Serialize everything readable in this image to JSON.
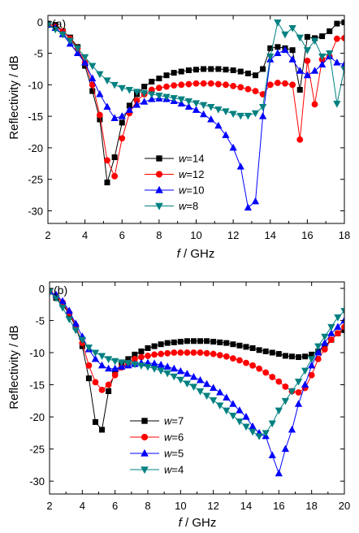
{
  "chart_data": [
    {
      "panel_label": "(a)",
      "type": "line",
      "xlabel": "f / GHz",
      "ylabel": "Reflectivity / dB",
      "xlim": [
        2,
        18
      ],
      "ylim": [
        -32,
        1
      ],
      "xticks": [
        2,
        4,
        6,
        8,
        10,
        12,
        14,
        16,
        18
      ],
      "yticks": [
        0,
        -5,
        -10,
        -15,
        -20,
        -25,
        -30
      ],
      "grid": false,
      "legend_position": "lower-center",
      "series": [
        {
          "name": "w=14",
          "legend_name": "w",
          "legend_value": "=14",
          "color": "#000000",
          "marker": "square",
          "x": [
            2.0,
            2.4,
            2.8,
            3.2,
            3.6,
            4.0,
            4.4,
            4.8,
            5.2,
            5.6,
            6.0,
            6.4,
            6.8,
            7.2,
            7.6,
            8.0,
            8.4,
            8.8,
            9.2,
            9.6,
            10.0,
            10.4,
            10.8,
            11.2,
            11.6,
            12.0,
            12.4,
            12.8,
            13.2,
            13.6,
            14.0,
            14.4,
            14.8,
            15.2,
            15.6,
            16.0,
            16.4,
            16.8,
            17.2,
            17.6,
            18.0
          ],
          "y": [
            -0.3,
            -0.5,
            -1.5,
            -2.5,
            -4.0,
            -7.0,
            -11.0,
            -15.5,
            -25.5,
            -21.5,
            -16.0,
            -13.3,
            -11.5,
            -10.3,
            -9.5,
            -9.0,
            -8.5,
            -8.1,
            -7.9,
            -7.7,
            -7.6,
            -7.5,
            -7.5,
            -7.5,
            -7.6,
            -7.7,
            -7.9,
            -8.2,
            -8.5,
            -7.5,
            -4.2,
            -4.0,
            -4.2,
            -4.5,
            -10.8,
            -2.4,
            -2.6,
            -2.3,
            -1.5,
            -0.3,
            -0.1
          ]
        },
        {
          "name": "w=12",
          "legend_name": "w",
          "legend_value": "=12",
          "color": "#ff0000",
          "marker": "circle",
          "x": [
            2.0,
            2.4,
            2.8,
            3.2,
            3.6,
            4.0,
            4.4,
            4.8,
            5.2,
            5.6,
            6.0,
            6.4,
            6.8,
            7.2,
            7.6,
            8.0,
            8.4,
            8.8,
            9.2,
            9.6,
            10.0,
            10.4,
            10.8,
            11.2,
            11.6,
            12.0,
            12.4,
            12.8,
            13.2,
            13.6,
            14.0,
            14.4,
            14.8,
            15.2,
            15.6,
            16.0,
            16.4,
            16.8,
            17.2,
            17.6,
            18.0
          ],
          "y": [
            -0.5,
            -0.8,
            -1.5,
            -2.7,
            -4.2,
            -6.5,
            -10.0,
            -14.8,
            -22.0,
            -24.5,
            -18.5,
            -14.5,
            -12.5,
            -11.5,
            -10.8,
            -10.5,
            -10.3,
            -10.1,
            -10.0,
            -9.9,
            -9.8,
            -9.8,
            -9.8,
            -9.9,
            -10.0,
            -10.2,
            -10.4,
            -10.7,
            -11.0,
            -11.5,
            -10.0,
            -9.7,
            -9.8,
            -10.0,
            -18.7,
            -6.2,
            -13.1,
            -6.0,
            -5.5,
            -2.7,
            -2.6
          ]
        },
        {
          "name": "w=10",
          "legend_name": "w",
          "legend_value": "=10",
          "color": "#0000ff",
          "marker": "triangle-up",
          "x": [
            2.0,
            2.4,
            2.8,
            3.2,
            3.6,
            4.0,
            4.4,
            4.8,
            5.2,
            5.6,
            6.0,
            6.4,
            6.8,
            7.2,
            7.6,
            8.0,
            8.4,
            8.8,
            9.2,
            9.6,
            10.0,
            10.4,
            10.8,
            11.2,
            11.6,
            12.0,
            12.4,
            12.8,
            13.2,
            13.6,
            14.0,
            14.4,
            14.8,
            15.2,
            15.6,
            16.0,
            16.4,
            16.8,
            17.2,
            17.6,
            18.0
          ],
          "y": [
            -0.5,
            -1.0,
            -2.0,
            -3.5,
            -5.0,
            -6.5,
            -9.0,
            -11.5,
            -13.5,
            -15.3,
            -15.0,
            -14.0,
            -13.2,
            -12.7,
            -12.3,
            -12.2,
            -12.3,
            -12.6,
            -13.0,
            -13.5,
            -14.0,
            -14.7,
            -15.5,
            -16.5,
            -18.0,
            -20.0,
            -23.0,
            -29.5,
            -28.5,
            -15.0,
            -6.0,
            -5.0,
            -4.5,
            -6.0,
            -7.8,
            -8.5,
            -7.8,
            -6.8,
            -5.5,
            -6.5,
            -6.8
          ]
        },
        {
          "name": "w=8",
          "legend_name": "w",
          "legend_value": "=8",
          "color": "#008080",
          "marker": "triangle-down",
          "x": [
            2.0,
            2.4,
            2.8,
            3.2,
            3.6,
            4.0,
            4.4,
            4.8,
            5.2,
            5.6,
            6.0,
            6.4,
            6.8,
            7.2,
            7.6,
            8.0,
            8.4,
            8.8,
            9.2,
            9.6,
            10.0,
            10.4,
            10.8,
            11.2,
            11.6,
            12.0,
            12.4,
            12.8,
            13.2,
            13.6,
            14.0,
            14.4,
            14.8,
            15.2,
            15.6,
            16.0,
            16.4,
            16.8,
            17.2,
            17.6,
            18.0
          ],
          "y": [
            -0.5,
            -1.2,
            -2.0,
            -3.0,
            -4.2,
            -5.6,
            -7.0,
            -8.3,
            -9.3,
            -10.0,
            -10.5,
            -10.8,
            -11.1,
            -11.3,
            -11.5,
            -11.7,
            -11.9,
            -12.1,
            -12.3,
            -12.6,
            -12.9,
            -13.2,
            -13.5,
            -13.9,
            -14.2,
            -14.6,
            -14.9,
            -14.9,
            -14.5,
            -13.5,
            -5.5,
            -0.1,
            -2.0,
            -1.0,
            -2.5,
            -4.5,
            -3.0,
            -5.5,
            -5.0,
            -13.0,
            -7.5
          ]
        }
      ]
    },
    {
      "panel_label": "(b)",
      "type": "line",
      "xlabel": "f / GHz",
      "ylabel": "Reflectivity / dB",
      "xlim": [
        2,
        20
      ],
      "ylim": [
        -32,
        1
      ],
      "xticks": [
        2,
        4,
        6,
        8,
        10,
        12,
        14,
        16,
        18,
        20
      ],
      "yticks": [
        0,
        -5,
        -10,
        -15,
        -20,
        -25,
        -30
      ],
      "grid": false,
      "legend_position": "lower-left",
      "series": [
        {
          "name": "w=7",
          "legend_name": "w",
          "legend_value": "=7",
          "color": "#000000",
          "marker": "square",
          "x": [
            2.0,
            2.4,
            2.8,
            3.2,
            3.6,
            4.0,
            4.4,
            4.8,
            5.2,
            5.6,
            6.0,
            6.4,
            6.8,
            7.2,
            7.6,
            8.0,
            8.4,
            8.8,
            9.2,
            9.6,
            10.0,
            10.4,
            10.8,
            11.2,
            11.6,
            12.0,
            12.4,
            12.8,
            13.2,
            13.6,
            14.0,
            14.4,
            14.8,
            15.2,
            15.6,
            16.0,
            16.4,
            16.8,
            17.2,
            17.6,
            18.0,
            18.4,
            18.8,
            19.2,
            19.6,
            20.0
          ],
          "y": [
            -0.5,
            -1.5,
            -2.5,
            -4.0,
            -6.0,
            -9.0,
            -14.0,
            -20.8,
            -22.0,
            -16.0,
            -13.0,
            -11.8,
            -11.0,
            -10.3,
            -9.8,
            -9.3,
            -9.0,
            -8.7,
            -8.5,
            -8.4,
            -8.3,
            -8.2,
            -8.2,
            -8.2,
            -8.2,
            -8.3,
            -8.4,
            -8.5,
            -8.7,
            -8.9,
            -9.1,
            -9.3,
            -9.6,
            -9.8,
            -10.0,
            -10.2,
            -10.5,
            -10.6,
            -10.7,
            -10.6,
            -10.3,
            -9.8,
            -9.0,
            -8.0,
            -7.0,
            -6.5
          ]
        },
        {
          "name": "w=6",
          "legend_name": "w",
          "legend_value": "=6",
          "color": "#ff0000",
          "marker": "circle",
          "x": [
            2.0,
            2.4,
            2.8,
            3.2,
            3.6,
            4.0,
            4.4,
            4.8,
            5.2,
            5.6,
            6.0,
            6.4,
            6.8,
            7.2,
            7.6,
            8.0,
            8.4,
            8.8,
            9.2,
            9.6,
            10.0,
            10.4,
            10.8,
            11.2,
            11.6,
            12.0,
            12.4,
            12.8,
            13.2,
            13.6,
            14.0,
            14.4,
            14.8,
            15.2,
            15.6,
            16.0,
            16.4,
            16.8,
            17.2,
            17.6,
            18.0,
            18.4,
            18.8,
            19.2,
            19.6,
            20.0
          ],
          "y": [
            -0.5,
            -1.2,
            -2.2,
            -3.8,
            -5.8,
            -8.5,
            -12.0,
            -14.6,
            -15.8,
            -15.0,
            -13.5,
            -12.3,
            -11.6,
            -11.0,
            -10.7,
            -10.5,
            -10.3,
            -10.2,
            -10.1,
            -10.0,
            -10.0,
            -10.0,
            -10.0,
            -10.0,
            -10.1,
            -10.2,
            -10.4,
            -10.6,
            -10.9,
            -11.2,
            -11.6,
            -12.0,
            -12.5,
            -13.1,
            -13.8,
            -14.5,
            -15.3,
            -16.0,
            -16.2,
            -15.5,
            -13.5,
            -11.0,
            -9.5,
            -8.0,
            -7.0,
            -6.0
          ]
        },
        {
          "name": "w=5",
          "legend_name": "w",
          "legend_value": "=5",
          "color": "#0000ff",
          "marker": "triangle-up",
          "x": [
            2.0,
            2.4,
            2.8,
            3.2,
            3.6,
            4.0,
            4.4,
            4.8,
            5.2,
            5.6,
            6.0,
            6.4,
            6.8,
            7.2,
            7.6,
            8.0,
            8.4,
            8.8,
            9.2,
            9.6,
            10.0,
            10.4,
            10.8,
            11.2,
            11.6,
            12.0,
            12.4,
            12.8,
            13.2,
            13.6,
            14.0,
            14.4,
            14.8,
            15.2,
            15.6,
            16.0,
            16.4,
            16.8,
            17.2,
            17.6,
            18.0,
            18.4,
            18.8,
            19.2,
            19.6,
            20.0
          ],
          "y": [
            -0.5,
            -1.0,
            -2.0,
            -3.5,
            -5.5,
            -7.5,
            -9.5,
            -11.0,
            -12.0,
            -12.5,
            -12.5,
            -12.2,
            -12.0,
            -11.8,
            -11.6,
            -11.6,
            -11.7,
            -11.9,
            -12.2,
            -12.5,
            -12.9,
            -13.3,
            -13.8,
            -14.3,
            -14.9,
            -15.5,
            -16.2,
            -17.0,
            -18.0,
            -19.0,
            -20.0,
            -21.5,
            -22.5,
            -23.0,
            -26.0,
            -28.8,
            -25.0,
            -22.0,
            -18.0,
            -15.0,
            -12.0,
            -10.0,
            -8.5,
            -7.0,
            -6.0,
            -5.0
          ]
        },
        {
          "name": "w=4",
          "legend_name": "w",
          "legend_value": "=4",
          "color": "#008080",
          "marker": "triangle-down",
          "x": [
            2.0,
            2.4,
            2.8,
            3.2,
            3.6,
            4.0,
            4.4,
            4.8,
            5.2,
            5.6,
            6.0,
            6.4,
            6.8,
            7.2,
            7.6,
            8.0,
            8.4,
            8.8,
            9.2,
            9.6,
            10.0,
            10.4,
            10.8,
            11.2,
            11.6,
            12.0,
            12.4,
            12.8,
            13.2,
            13.6,
            14.0,
            14.4,
            14.8,
            15.2,
            15.6,
            16.0,
            16.4,
            16.8,
            17.2,
            17.6,
            18.0,
            18.4,
            18.8,
            19.2,
            19.6,
            20.0
          ],
          "y": [
            -0.5,
            -1.5,
            -3.0,
            -4.8,
            -6.5,
            -8.0,
            -9.2,
            -10.0,
            -10.5,
            -11.0,
            -11.3,
            -11.5,
            -11.6,
            -11.8,
            -12.0,
            -12.2,
            -12.5,
            -12.8,
            -13.2,
            -13.7,
            -14.2,
            -14.8,
            -15.3,
            -16.0,
            -16.7,
            -17.4,
            -18.2,
            -19.0,
            -19.8,
            -20.7,
            -21.5,
            -22.3,
            -23.0,
            -22.5,
            -21.0,
            -19.0,
            -17.5,
            -16.0,
            -14.5,
            -12.8,
            -11.0,
            -9.0,
            -7.5,
            -6.0,
            -4.5,
            -3.5
          ]
        }
      ]
    }
  ]
}
